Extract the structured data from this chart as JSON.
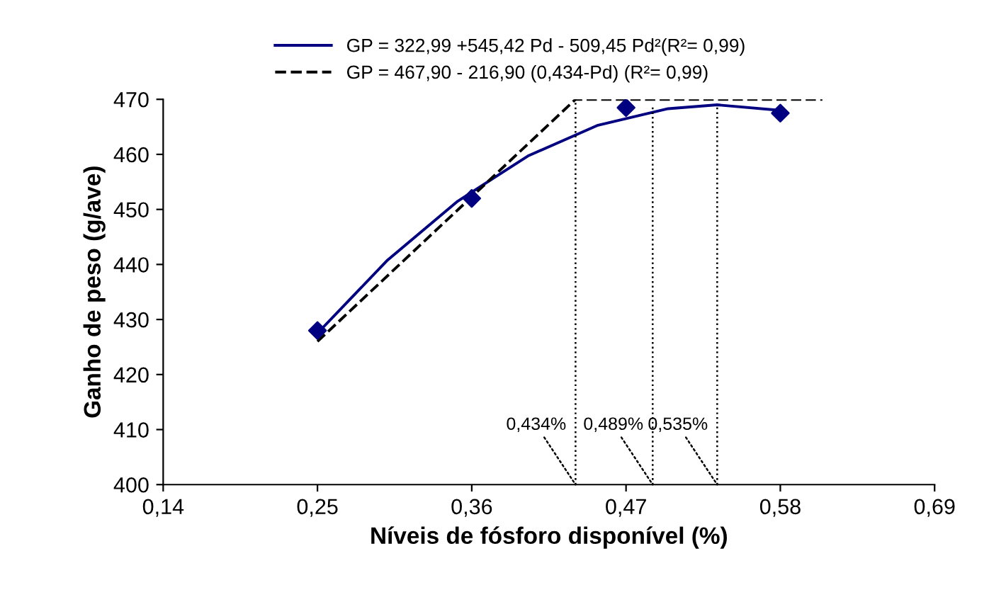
{
  "chart_data": {
    "type": "line",
    "xlabel": "Níveis de fósforo disponível (%)",
    "ylabel": "Ganho de peso (g/ave)",
    "xlim": [
      0.14,
      0.69
    ],
    "ylim": [
      400,
      470
    ],
    "xticks": [
      {
        "value": 0.14,
        "label": "0,14"
      },
      {
        "value": 0.25,
        "label": "0,25"
      },
      {
        "value": 0.36,
        "label": "0,36"
      },
      {
        "value": 0.47,
        "label": "0,47"
      },
      {
        "value": 0.58,
        "label": "0,58"
      },
      {
        "value": 0.69,
        "label": "0,69"
      }
    ],
    "yticks": [
      400,
      410,
      420,
      430,
      440,
      450,
      460,
      470
    ],
    "grid": false,
    "legend": "top",
    "series": [
      {
        "name": "GP = 322,99 +545,42 Pd - 509,45 Pd²(R²= 0,99)",
        "color": "#000080",
        "line_style": "solid",
        "marker": "none",
        "x": [
          0.25,
          0.3,
          0.35,
          0.4,
          0.45,
          0.5,
          0.535,
          0.58
        ],
        "values": [
          427.5,
          440.8,
          451.5,
          459.7,
          465.3,
          468.3,
          469.0,
          468.0
        ]
      },
      {
        "name": "GP = 467,90 - 216,90 (0,434-Pd) (R²= 0,99)",
        "color": "#000000",
        "line_style": "dashed",
        "marker": "none",
        "x": [
          0.25,
          0.434,
          0.61
        ],
        "values": [
          426,
          470,
          470
        ]
      },
      {
        "type": "scatter",
        "color": "#000080",
        "marker": "diamond",
        "x": [
          0.25,
          0.36,
          0.47,
          0.58
        ],
        "values": [
          428,
          452,
          468.5,
          467.5
        ]
      },
      {
        "type": "line",
        "color": "#000000",
        "line_style": "dotted",
        "marker": "none",
        "x": [
          0.434,
          0.434
        ],
        "values": [
          400,
          470
        ]
      },
      {
        "type": "line",
        "color": "#000000",
        "line_style": "dotted",
        "marker": "none",
        "x": [
          0.489,
          0.489
        ],
        "values": [
          400,
          469
        ]
      },
      {
        "type": "line",
        "color": "#000000",
        "line_style": "dotted",
        "marker": "none",
        "x": [
          0.535,
          0.535
        ],
        "values": [
          400,
          469
        ]
      }
    ],
    "annotations": [
      {
        "text": "0,434%",
        "x": 0.434,
        "y": 400
      },
      {
        "text": "0,489%",
        "x": 0.489,
        "y": 400
      },
      {
        "text": "0,535%",
        "x": 0.535,
        "y": 400
      }
    ]
  }
}
